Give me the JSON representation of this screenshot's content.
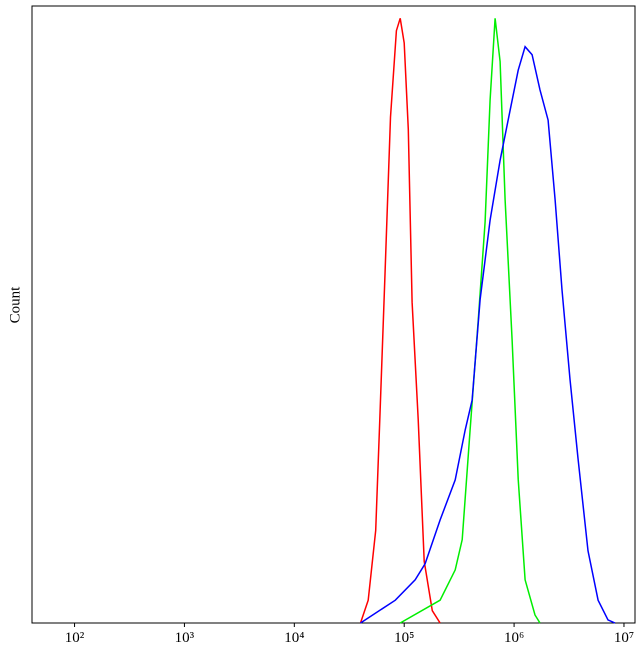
{
  "chart_data": {
    "type": "line",
    "y_label": "Count",
    "log_x": true,
    "xlim": [
      41,
      12600000
    ],
    "ylim": [
      0,
      100
    ],
    "xticks": [
      {
        "value": 100,
        "label": "10²"
      },
      {
        "value": 1000,
        "label": "10³"
      },
      {
        "value": 10000,
        "label": "10⁴"
      },
      {
        "value": 100000,
        "label": "10⁵"
      },
      {
        "value": 1000000,
        "label": "10⁶"
      },
      {
        "value": 10000000,
        "label": "10⁷"
      }
    ],
    "series": [
      {
        "color": "#ff0000",
        "x": [
          40000,
          47000,
          55000,
          60000,
          67000,
          75000,
          85000,
          92000,
          100000,
          109000,
          118000,
          134000,
          152000,
          180000,
          212000
        ],
        "values": [
          0,
          3.7,
          15,
          33,
          57,
          82,
          96,
          98,
          94,
          80,
          52,
          33,
          10,
          2,
          0
        ]
      },
      {
        "color": "#00ee00",
        "x": [
          92000,
          212000,
          291000,
          337000,
          398000,
          471000,
          545000,
          605000,
          672000,
          746000,
          828000,
          959000,
          1090000,
          1260000,
          1550000,
          1720000
        ],
        "values": [
          0,
          3.7,
          8.6,
          13.5,
          31.3,
          49,
          65,
          84.8,
          98,
          91,
          68.6,
          45.9,
          23.3,
          7,
          1.3,
          0
        ]
      },
      {
        "color": "#0000ff",
        "x": [
          40000,
          83000,
          126000,
          155000,
          212000,
          291000,
          359000,
          415000,
          491000,
          605000,
          746000,
          920000,
          1090000,
          1260000,
          1460000,
          1720000,
          2040000,
          2360000,
          2730000,
          3230000,
          3820000,
          4710000,
          5810000,
          7160000,
          8280000
        ],
        "values": [
          0,
          3.7,
          7,
          9.6,
          16.7,
          23.2,
          31.3,
          36.1,
          52.4,
          65.3,
          75,
          83.1,
          89.6,
          93.4,
          92.1,
          86.4,
          81.5,
          68.6,
          54,
          39.5,
          26.7,
          11.7,
          3.7,
          0.5,
          0
        ]
      }
    ]
  }
}
